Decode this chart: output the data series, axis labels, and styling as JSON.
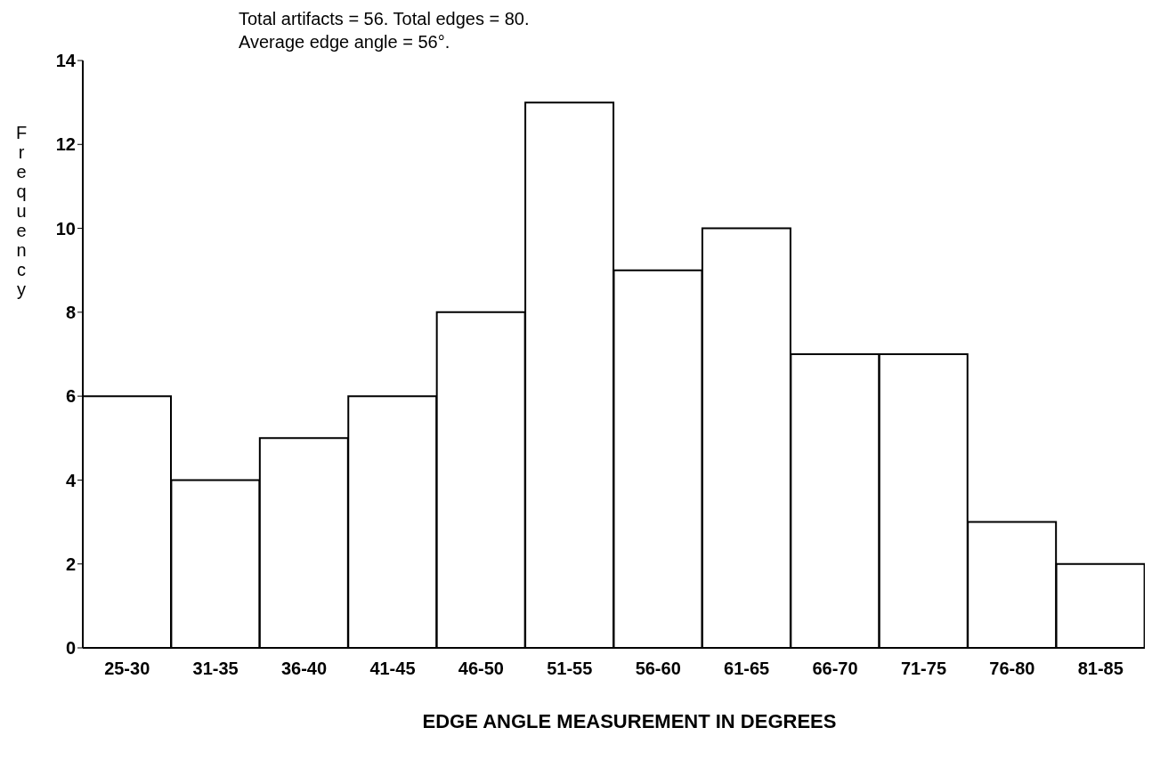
{
  "chart_data": {
    "type": "bar",
    "xlabel": "EDGE ANGLE MEASUREMENT IN DEGREES",
    "ylabel": "Frequency",
    "annotations": [
      "Total artifacts = 56.  Total edges = 80.",
      "Average edge angle = 56°."
    ],
    "categories": [
      "25-30",
      "31-35",
      "36-40",
      "41-45",
      "46-50",
      "51-55",
      "56-60",
      "61-65",
      "66-70",
      "71-75",
      "76-80",
      "81-85"
    ],
    "values": [
      6,
      4,
      5,
      6,
      8,
      13,
      9,
      10,
      7,
      7,
      3,
      2
    ],
    "color": "#ffffff",
    "ylim": [
      0,
      14
    ],
    "yticks": [
      0,
      2,
      4,
      6,
      8,
      10,
      12,
      14
    ],
    "grid": false,
    "legend": false
  }
}
